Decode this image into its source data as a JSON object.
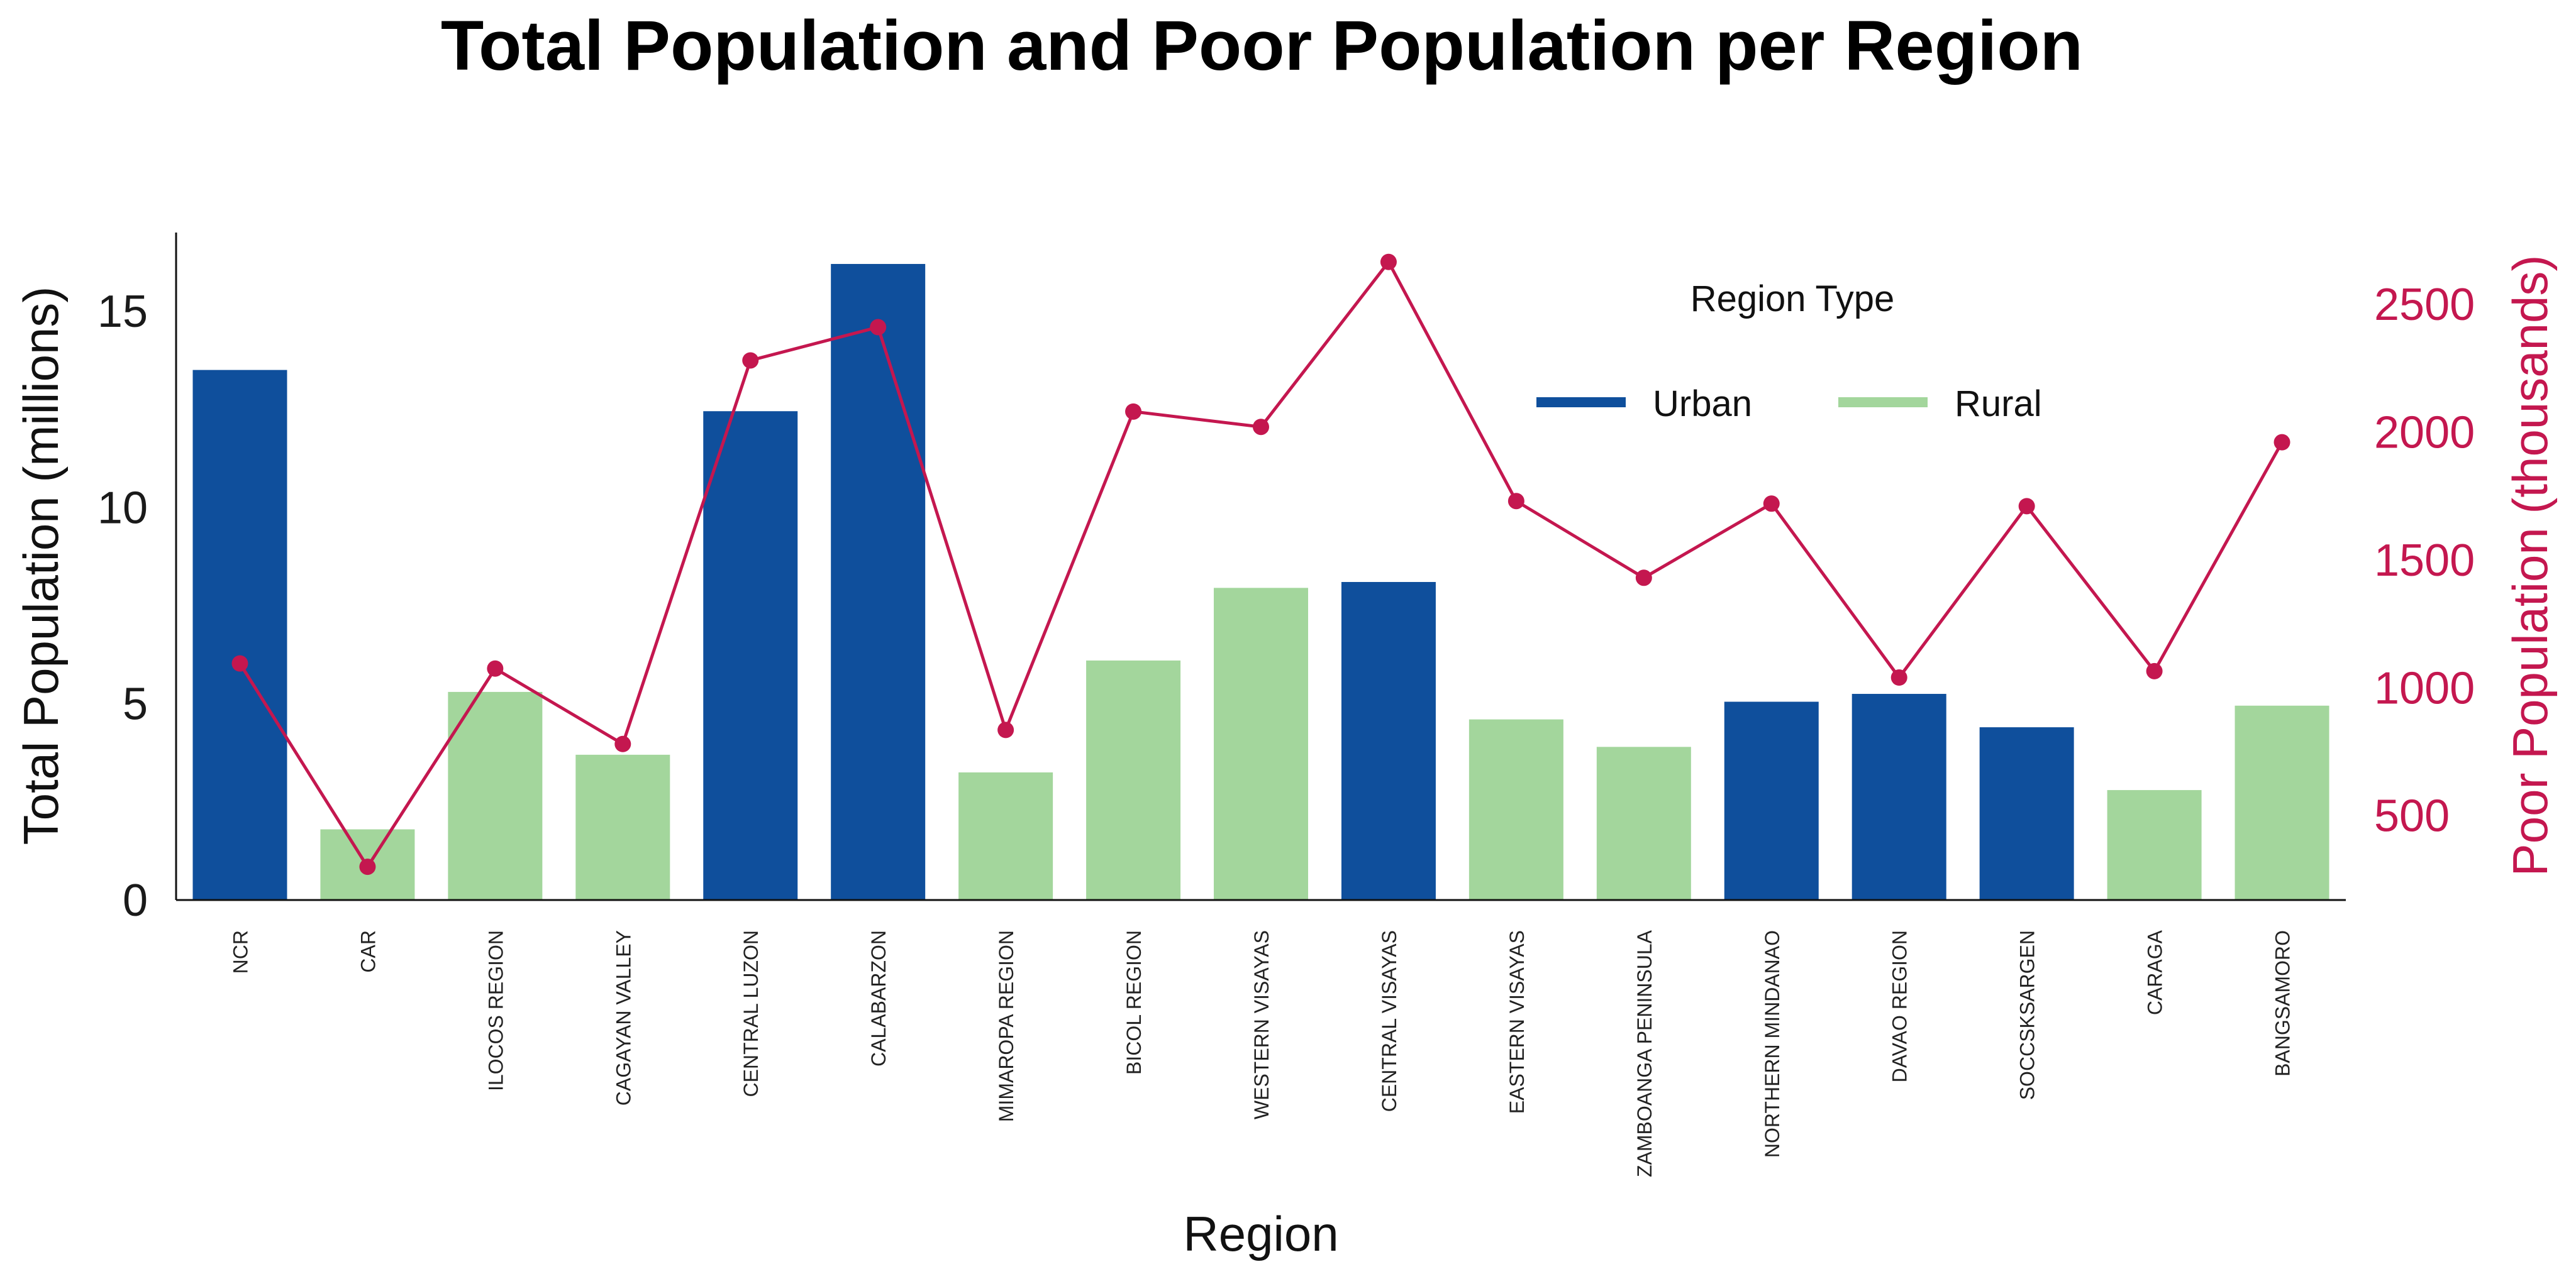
{
  "title": "Total Population and Poor Population per Region",
  "chart_data": {
    "type": "bar",
    "title": "Total Population and Poor Population per Region",
    "xlabel": "Region",
    "ylabel": "Total Population (millions)",
    "y2label": "Poor Population (thousands)",
    "categories": [
      "NCR",
      "CAR",
      "ILOCOS REGION",
      "CAGAYAN VALLEY",
      "CENTRAL LUZON",
      "CALABARZON",
      "MIMAROPA REGION",
      "BICOL REGION",
      "WESTERN VISAYAS",
      "CENTRAL VISAYAS",
      "EASTERN VISAYAS",
      "ZAMBOANGA PENINSULA",
      "NORTHERN MINDANAO",
      "DAVAO REGION",
      "SOCCSKSARGEN",
      "CARAGA",
      "BANGSAMORO"
    ],
    "region_types": [
      "Urban",
      "Rural",
      "Rural",
      "Rural",
      "Urban",
      "Urban",
      "Rural",
      "Rural",
      "Rural",
      "Urban",
      "Rural",
      "Rural",
      "Urban",
      "Urban",
      "Urban",
      "Rural",
      "Rural"
    ],
    "series": [
      {
        "name": "Total Population",
        "axis": "left",
        "kind": "bar",
        "values": [
          13.5,
          1.8,
          5.3,
          3.7,
          12.45,
          16.2,
          3.25,
          6.1,
          7.95,
          8.1,
          4.6,
          3.9,
          5.05,
          5.25,
          4.4,
          2.8,
          4.95
        ]
      },
      {
        "name": "Poor Population",
        "axis": "right",
        "kind": "line",
        "values": [
          1095,
          300,
          1075,
          780,
          2280,
          2410,
          835,
          2080,
          2020,
          2665,
          1730,
          1430,
          1720,
          1040,
          1710,
          1065,
          1960
        ]
      }
    ],
    "ylim": [
      0,
      17
    ],
    "yticks": [
      0,
      5,
      10,
      15
    ],
    "y2lim": [
      170,
      2780
    ],
    "y2ticks": [
      500,
      1000,
      1500,
      2000,
      2500
    ],
    "legend": {
      "title": "Region Type",
      "placement": "top-right",
      "entries": [
        {
          "label": "Urban",
          "color": "#0f4f9c"
        },
        {
          "label": "Rural",
          "color": "#a3d69c"
        }
      ]
    },
    "colors": {
      "urban": "#0f4f9c",
      "rural": "#a3d69c",
      "line": "#c4174f",
      "right_axis": "#c4174f"
    },
    "grid": false
  }
}
